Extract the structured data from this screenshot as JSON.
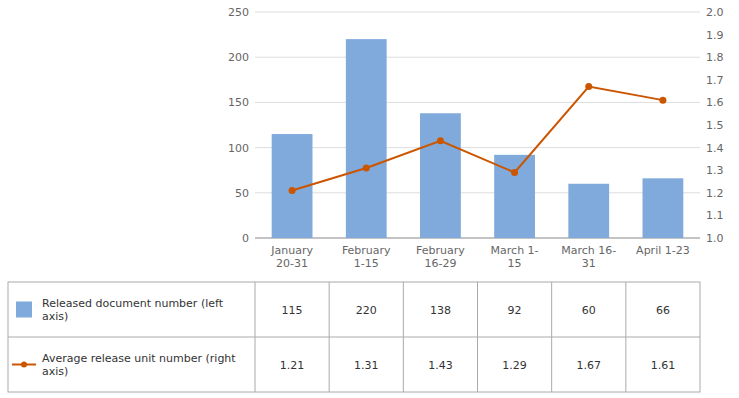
{
  "chart_data": {
    "type": "bar",
    "categories": [
      "January\n20-31",
      "February\n1-15",
      "February\n16-29",
      "March 1-\n15",
      "March 16-\n31",
      "April 1-23"
    ],
    "series": [
      {
        "name": "Released document number (left\naxis)",
        "type": "bar",
        "color": "#7faadb",
        "values": [
          115,
          220,
          138,
          92,
          60,
          66
        ]
      },
      {
        "name": "Average release unit number (right\naxis)",
        "type": "line",
        "color": "#cc5500",
        "marker": "circle",
        "axis": "y2",
        "values": [
          1.21,
          1.31,
          1.43,
          1.29,
          1.67,
          1.61
        ]
      }
    ],
    "ylim": [
      0,
      250
    ],
    "yticks": [
      0,
      50,
      100,
      150,
      200,
      250
    ],
    "y2lim": [
      1.0,
      2.0
    ],
    "y2ticks": [
      {
        "value": 1.0,
        "label": "1.0"
      },
      1.1,
      1.2,
      1.3,
      1.4,
      1.5,
      1.6,
      1.7,
      1.8,
      1.9,
      {
        "value": 2.0,
        "label": "2.0"
      }
    ],
    "grid": true
  }
}
